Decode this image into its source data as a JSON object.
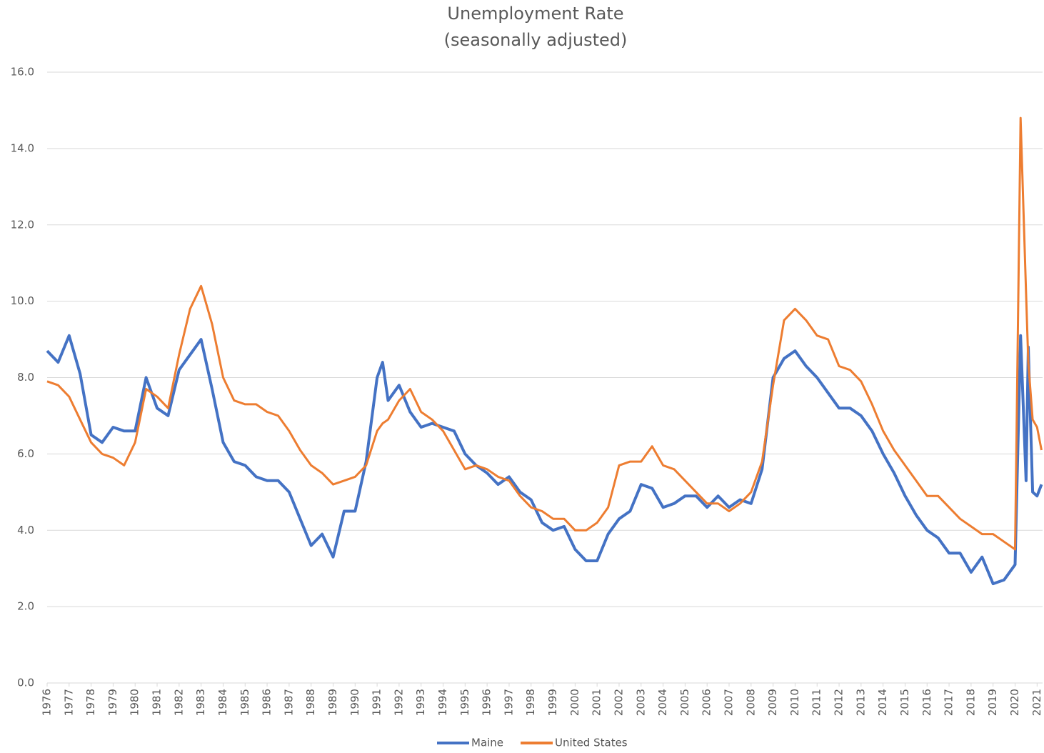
{
  "chart_data": {
    "type": "line",
    "title": "Unemployment Rate",
    "subtitle": "(seasonally adjusted)",
    "x": [
      1976,
      1976.5,
      1977,
      1977.5,
      1978,
      1978.5,
      1979,
      1979.5,
      1980,
      1980.5,
      1981,
      1981.5,
      1982,
      1982.5,
      1983,
      1983.5,
      1984,
      1984.5,
      1985,
      1985.5,
      1986,
      1986.5,
      1987,
      1987.5,
      1988,
      1988.5,
      1989,
      1989.5,
      1990,
      1990.5,
      1991,
      1991.25,
      1991.5,
      1992,
      1992.5,
      1993,
      1993.5,
      1994,
      1994.5,
      1995,
      1995.5,
      1996,
      1996.5,
      1997,
      1997.5,
      1998,
      1998.5,
      1999,
      1999.5,
      2000,
      2000.5,
      2001,
      2001.5,
      2002,
      2002.5,
      2003,
      2003.5,
      2004,
      2004.5,
      2005,
      2005.5,
      2006,
      2006.5,
      2007,
      2007.5,
      2008,
      2008.5,
      2009,
      2009.5,
      2010,
      2010.5,
      2011,
      2011.5,
      2012,
      2012.5,
      2013,
      2013.5,
      2014,
      2014.5,
      2015,
      2015.5,
      2016,
      2016.5,
      2017,
      2017.5,
      2018,
      2018.5,
      2019,
      2019.5,
      2020,
      2020.25,
      2020.5,
      2020.6,
      2020.8,
      2021,
      2021.2
    ],
    "series": [
      {
        "name": "Maine",
        "color": "#4472c4",
        "values": [
          8.7,
          8.4,
          9.1,
          8.1,
          6.5,
          6.3,
          6.7,
          6.6,
          6.6,
          8.0,
          7.2,
          7.0,
          8.2,
          8.6,
          9.0,
          7.7,
          6.3,
          5.8,
          5.7,
          5.4,
          5.3,
          5.3,
          5.0,
          4.3,
          3.6,
          3.9,
          3.3,
          4.5,
          4.5,
          5.8,
          8.0,
          8.4,
          7.4,
          7.8,
          7.1,
          6.7,
          6.8,
          6.7,
          6.6,
          6.0,
          5.7,
          5.5,
          5.2,
          5.4,
          5.0,
          4.8,
          4.2,
          4.0,
          4.1,
          3.5,
          3.2,
          3.2,
          3.9,
          4.3,
          4.5,
          5.2,
          5.1,
          4.6,
          4.7,
          4.9,
          4.9,
          4.6,
          4.9,
          4.6,
          4.8,
          4.7,
          5.6,
          8.0,
          8.5,
          8.7,
          8.3,
          8.0,
          7.6,
          7.2,
          7.2,
          7.0,
          6.6,
          6.0,
          5.5,
          4.9,
          4.4,
          4.0,
          3.8,
          3.4,
          3.4,
          2.9,
          3.3,
          2.6,
          2.7,
          3.1,
          9.1,
          5.3,
          8.8,
          5.0,
          4.9,
          5.2
        ]
      },
      {
        "name": "United States",
        "color": "#ed7d31",
        "values": [
          7.9,
          7.8,
          7.5,
          6.9,
          6.3,
          6.0,
          5.9,
          5.7,
          6.3,
          7.7,
          7.5,
          7.2,
          8.6,
          9.8,
          10.4,
          9.4,
          8.0,
          7.4,
          7.3,
          7.3,
          7.1,
          7.0,
          6.6,
          6.1,
          5.7,
          5.5,
          5.2,
          5.3,
          5.4,
          5.7,
          6.6,
          6.8,
          6.9,
          7.4,
          7.7,
          7.1,
          6.9,
          6.6,
          6.1,
          5.6,
          5.7,
          5.6,
          5.4,
          5.3,
          4.9,
          4.6,
          4.5,
          4.3,
          4.3,
          4.0,
          4.0,
          4.2,
          4.6,
          5.7,
          5.8,
          5.8,
          6.2,
          5.7,
          5.6,
          5.3,
          5.0,
          4.7,
          4.7,
          4.5,
          4.7,
          5.0,
          5.8,
          7.8,
          9.5,
          9.8,
          9.5,
          9.1,
          9.0,
          8.3,
          8.2,
          7.9,
          7.3,
          6.6,
          6.1,
          5.7,
          5.3,
          4.9,
          4.9,
          4.6,
          4.3,
          4.1,
          3.9,
          3.9,
          3.7,
          3.5,
          14.8,
          10.2,
          8.4,
          6.9,
          6.7,
          6.1
        ]
      }
    ],
    "xlim": [
      1976,
      2021.25
    ],
    "xticks": [
      1976,
      1977,
      1978,
      1979,
      1980,
      1981,
      1982,
      1983,
      1984,
      1985,
      1986,
      1987,
      1988,
      1989,
      1990,
      1991,
      1992,
      1993,
      1994,
      1995,
      1996,
      1997,
      1998,
      1999,
      2000,
      2001,
      2002,
      2003,
      2004,
      2005,
      2006,
      2007,
      2008,
      2009,
      2010,
      2011,
      2012,
      2013,
      2014,
      2015,
      2016,
      2017,
      2018,
      2019,
      2020,
      2021
    ],
    "ylim": [
      0,
      16
    ],
    "yticks": [
      {
        "value": 0,
        "label": "0.0"
      },
      {
        "value": 2,
        "label": "2.0"
      },
      {
        "value": 4,
        "label": "4.0"
      },
      {
        "value": 6,
        "label": "6.0"
      },
      {
        "value": 8,
        "label": "8.0"
      },
      {
        "value": 10,
        "label": "10.0"
      },
      {
        "value": 12,
        "label": "12.0"
      },
      {
        "value": 14,
        "label": "14.0"
      },
      {
        "value": 16,
        "label": "16.0"
      }
    ],
    "grid": true,
    "legend": "bottom"
  }
}
